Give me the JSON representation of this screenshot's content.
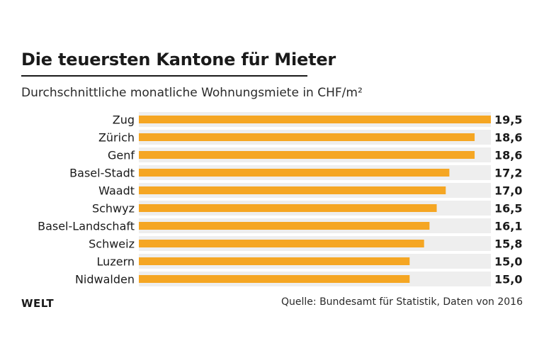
{
  "header": {
    "title": "Die teuersten Kantone für Mieter",
    "subtitle": "Durchschnittliche monatliche Wohnungsmiete in CHF/m²"
  },
  "footer": {
    "logo": "WELT",
    "source": "Quelle: Bundesamt für Statistik, Daten von 2016"
  },
  "colors": {
    "bar": "#f5a623",
    "track": "#eeeeee",
    "text": "#1a1a1a"
  },
  "chart_data": {
    "type": "bar",
    "orientation": "horizontal",
    "title": "Die teuersten Kantone für Mieter",
    "subtitle": "Durchschnittliche monatliche Wohnungsmiete in CHF/m²",
    "xlim": [
      0,
      19.5
    ],
    "grid": false,
    "categories": [
      "Zug",
      "Zürich",
      "Genf",
      "Basel-Stadt",
      "Waadt",
      "Schwyz",
      "Basel-Landschaft",
      "Schweiz",
      "Luzern",
      "Nidwalden"
    ],
    "values": [
      19.5,
      18.6,
      18.6,
      17.2,
      17.0,
      16.5,
      16.1,
      15.8,
      15.0,
      15.0
    ],
    "value_labels": [
      "19,5",
      "18,6",
      "18,6",
      "17,2",
      "17,0",
      "16,5",
      "16,1",
      "15,8",
      "15,0",
      "15,0"
    ]
  }
}
